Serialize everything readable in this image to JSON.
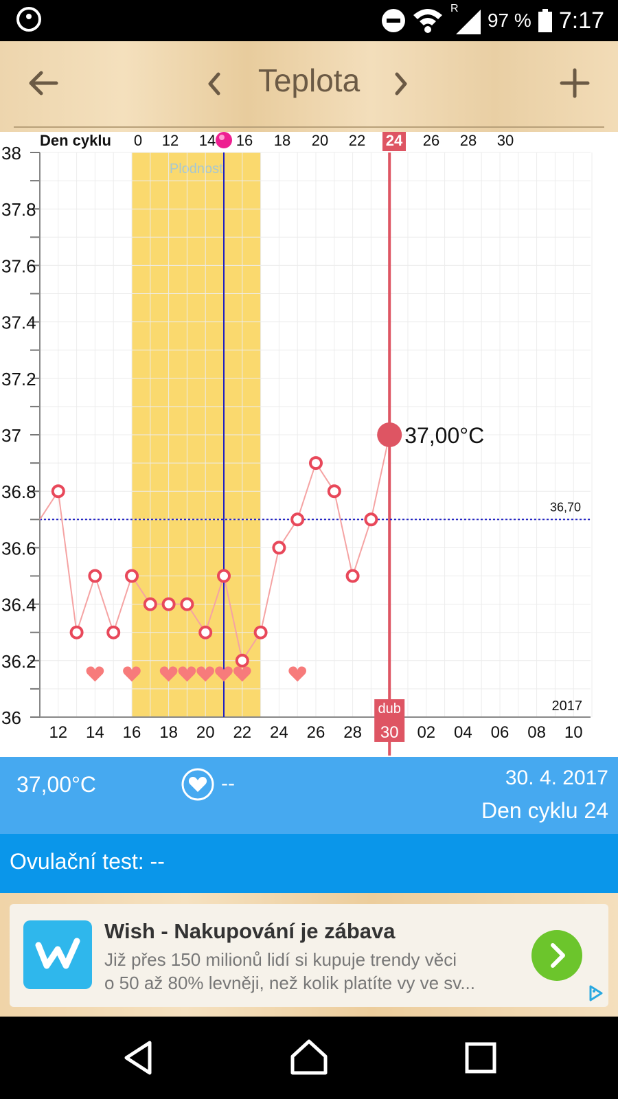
{
  "status_bar": {
    "signal_mark": "R",
    "battery": "97 %",
    "time": "7:17"
  },
  "app_bar": {
    "title": "Teplota",
    "back_icon": "arrow-left-icon",
    "prev_icon": "chevron-left-icon",
    "next_icon": "chevron-right-icon",
    "add_icon": "plus-icon"
  },
  "chart_data": {
    "type": "line",
    "top_axis_label": "Den cyklu",
    "top_ticks": [
      "0",
      "12",
      "14",
      "16",
      "18",
      "20",
      "22",
      "24",
      "26",
      "28",
      "30"
    ],
    "selected_cycle_day": "24",
    "x_ticks": [
      "12",
      "14",
      "16",
      "18",
      "20",
      "22",
      "24",
      "26",
      "28",
      "30",
      "02",
      "04",
      "06",
      "08",
      "10"
    ],
    "month_label": "dub",
    "selected_date_label": "30",
    "year_label": "2017",
    "y_ticks": [
      "36",
      "36.2",
      "36.4",
      "36.6",
      "36.8",
      "37",
      "37.2",
      "37.4",
      "37.6",
      "37.8",
      "38"
    ],
    "ylim": [
      36,
      38
    ],
    "fertile_label": "Plodnost",
    "fertile_window_dates": [
      16,
      23
    ],
    "ovulation_date": 21,
    "coverline": 36.7,
    "coverline_label": "36,70",
    "series": [
      {
        "dates": [
          11,
          12,
          13,
          14,
          15,
          16,
          17,
          18,
          19,
          20,
          21,
          22,
          23,
          24,
          25,
          26,
          27,
          28,
          29,
          30
        ],
        "values": [
          36.7,
          36.8,
          36.3,
          36.5,
          36.3,
          36.5,
          36.4,
          36.4,
          36.4,
          36.3,
          36.5,
          36.2,
          36.3,
          36.6,
          36.7,
          36.9,
          36.8,
          36.5,
          36.7,
          37.0
        ]
      }
    ],
    "heart_dates": [
      14,
      16,
      18,
      19,
      20,
      21,
      22,
      25
    ],
    "selected_date": 30,
    "selected_value": 37.0,
    "selected_value_label": "37,00°C",
    "colors": {
      "line": "#f5a3a3",
      "marker": "#e8485a",
      "selected": "#de5563",
      "fertile": "#fad96e",
      "ovulation": "#1d1ec4",
      "coverline": "#1d1ec4"
    }
  },
  "summary": {
    "temperature": "37,00°C",
    "intercourse_icon": "heart-circle-icon",
    "intercourse_value": "--",
    "date": "30. 4. 2017",
    "cycle_day": "Den cyklu 24"
  },
  "ovulation_test": {
    "text": "Ovulační test: --"
  },
  "ad": {
    "title": "Wish - Nakupování je zábava",
    "line1": "Již přes 150 milionů lidí si kupuje trendy věci",
    "line2": "o 50 až 80% levněji, než kolik platíte vy ve sv...",
    "logo_icon": "wish-logo-icon",
    "cta_icon": "chevron-right-icon",
    "adchoices_icon": "adchoices-icon",
    "colors": {
      "logo": "#2fb7ec",
      "cta": "#6cc52c"
    }
  },
  "nav": {
    "back_icon": "nav-back-icon",
    "home_icon": "nav-home-icon",
    "recents_icon": "nav-recents-icon"
  }
}
